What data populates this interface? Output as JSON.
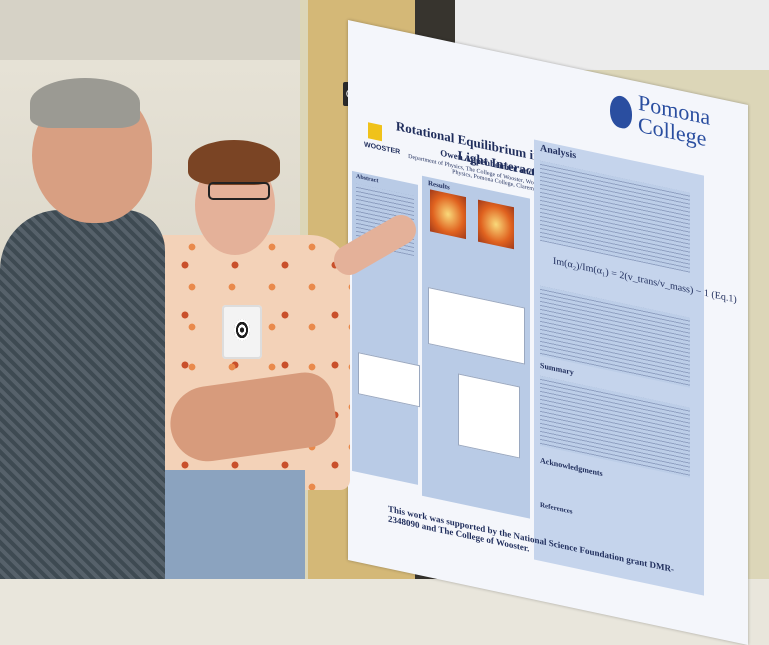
{
  "poster": {
    "title": "Rotational Equilibrium in Nanoparticle-Light Interactions",
    "authors": "Owen Appenheimer and Dr. Cody Leary",
    "department": "Department of Physics, The College of Wooster, Wooster, OH 44691, USA · Department of Physics, Pomona College, Claremont, CA 91711, USA",
    "logo_pomona": "Pomona College",
    "logo_wooster": "WOOSTER",
    "sections": {
      "abstract": "Abstract",
      "results": "Results",
      "analysis": "Analysis",
      "summary": "Summary",
      "acknowledgments": "Acknowledgments",
      "references": "References"
    },
    "equation": "Im(α₂)/Im(α₁) = 2(v_trans/v_mass) − 1   (Eq.1)",
    "footer": "This work was supported by the National Science Foundation grant DMR-2348090 and The College of Wooster."
  },
  "colors": {
    "poster_accent": "#2a4ea0",
    "panel_blue": "#b9cbe6"
  }
}
